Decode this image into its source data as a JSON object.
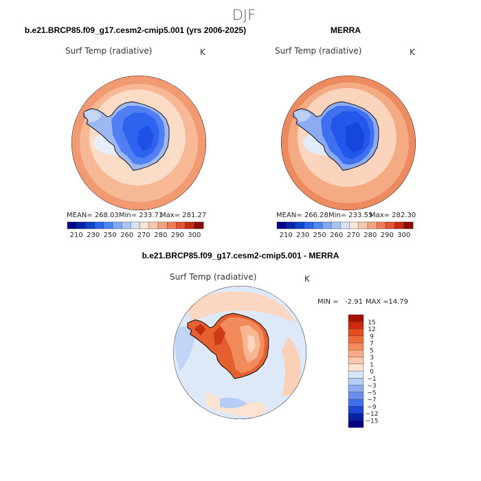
{
  "figure": {
    "title": "DJF"
  },
  "chart_data": [
    {
      "type": "heatmap",
      "projection": "south-polar-stereographic",
      "title": "b.e21.BRCP85.f09_g17.cesm2-cmip5.001 (yrs 2006-2025)",
      "variable": "Surf Temp (radiative)",
      "units": "K",
      "stats": {
        "mean_label": "MEAN= 268.03",
        "min_label": "Min= 233.71",
        "max_label": "Max= 281.27",
        "mean": 268.03,
        "min": 233.71,
        "max": 281.27
      },
      "colorbar": {
        "ticks": [
          "210",
          "230",
          "250",
          "260",
          "270",
          "280",
          "290",
          "300"
        ],
        "colors": [
          "#00008a",
          "#0022a8",
          "#0a44cc",
          "#2a66ee",
          "#4f86f5",
          "#7fa8f7",
          "#aac4f4",
          "#d3e2f7",
          "#fbe4d2",
          "#f9c7aa",
          "#f4a37e",
          "#ee7b55",
          "#e45230",
          "#c42a14",
          "#8e0a05"
        ]
      }
    },
    {
      "type": "heatmap",
      "projection": "south-polar-stereographic",
      "title": "MERRA",
      "variable": "Surf Temp (radiative)",
      "units": "K",
      "stats": {
        "mean_label": "MEAN= 266.28",
        "min_label": "Min= 233.55",
        "max_label": "Max= 282.30",
        "mean": 266.28,
        "min": 233.55,
        "max": 282.3
      },
      "colorbar": {
        "ticks": [
          "210",
          "230",
          "250",
          "260",
          "270",
          "280",
          "290",
          "300"
        ],
        "colors": [
          "#00008a",
          "#0022a8",
          "#0a44cc",
          "#2a66ee",
          "#4f86f5",
          "#7fa8f7",
          "#aac4f4",
          "#d3e2f7",
          "#fbe4d2",
          "#f9c7aa",
          "#f4a37e",
          "#ee7b55",
          "#e45230",
          "#c42a14",
          "#8e0a05"
        ]
      }
    },
    {
      "type": "heatmap",
      "projection": "south-polar-stereographic",
      "title": "b.e21.BRCP85.f09_g17.cesm2-cmip5.001 - MERRA",
      "variable": "Surf Temp (radiative)",
      "units": "K",
      "stats": {
        "min_label": "MIN =",
        "min_value": "-2.91",
        "max_label": "MAX =",
        "max_value": "14.79",
        "min": -2.91,
        "max": 14.79
      },
      "colorbar": {
        "ticks": [
          "15",
          "12",
          "9",
          "7",
          "5",
          "3",
          "1",
          "0",
          "−1",
          "−3",
          "−5",
          "−7",
          "−9",
          "−12",
          "−15"
        ],
        "colors": [
          "#a50f05",
          "#cf2a0f",
          "#e84c1c",
          "#f06a38",
          "#f48c5e",
          "#f7ab86",
          "#fac7ac",
          "#fde3d2",
          "#d7e5f7",
          "#b6cdf5",
          "#8eadf2",
          "#6a8ef0",
          "#416eec",
          "#1b46d6",
          "#0620a6",
          "#000080"
        ]
      }
    }
  ]
}
